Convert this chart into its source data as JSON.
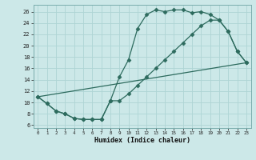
{
  "title": "",
  "xlabel": "Humidex (Indice chaleur)",
  "line_color": "#2d6b5e",
  "bg_color": "#cce8e8",
  "grid_color": "#aed4d4",
  "xlim": [
    -0.5,
    23.5
  ],
  "ylim": [
    5.5,
    27.2
  ],
  "xticks": [
    0,
    1,
    2,
    3,
    4,
    5,
    6,
    7,
    8,
    9,
    10,
    11,
    12,
    13,
    14,
    15,
    16,
    17,
    18,
    19,
    20,
    21,
    22,
    23
  ],
  "yticks": [
    6,
    8,
    10,
    12,
    14,
    16,
    18,
    20,
    22,
    24,
    26
  ],
  "curve1_x": [
    0,
    1,
    2,
    3,
    4,
    5,
    6,
    7,
    8,
    9,
    10,
    11,
    12,
    13,
    14,
    15,
    16,
    17,
    18,
    19,
    20,
    21,
    22,
    23
  ],
  "curve1_y": [
    11,
    9.8,
    8.5,
    8.0,
    7.2,
    7.0,
    7.0,
    7.0,
    10.3,
    14.5,
    17.5,
    23.0,
    25.5,
    26.3,
    26.0,
    26.3,
    26.3,
    25.8,
    26.0,
    25.5,
    24.5,
    22.5,
    19.0,
    17.0
  ],
  "curve2_x": [
    0,
    1,
    2,
    3,
    4,
    5,
    6,
    7,
    8,
    9,
    10,
    11,
    12,
    13,
    14,
    15,
    16,
    17,
    18,
    19,
    20,
    21,
    22,
    23
  ],
  "curve2_y": [
    11,
    9.8,
    8.5,
    8.0,
    7.2,
    7.0,
    7.0,
    7.0,
    10.3,
    10.3,
    11.5,
    13.0,
    14.5,
    16.0,
    17.5,
    19.0,
    20.5,
    22.0,
    23.5,
    24.5,
    24.5,
    22.5,
    19.0,
    17.0
  ],
  "curve3_x": [
    0,
    23
  ],
  "curve3_y": [
    11,
    17.0
  ],
  "marker": "D",
  "markersize": 2.5,
  "lw": 0.9
}
